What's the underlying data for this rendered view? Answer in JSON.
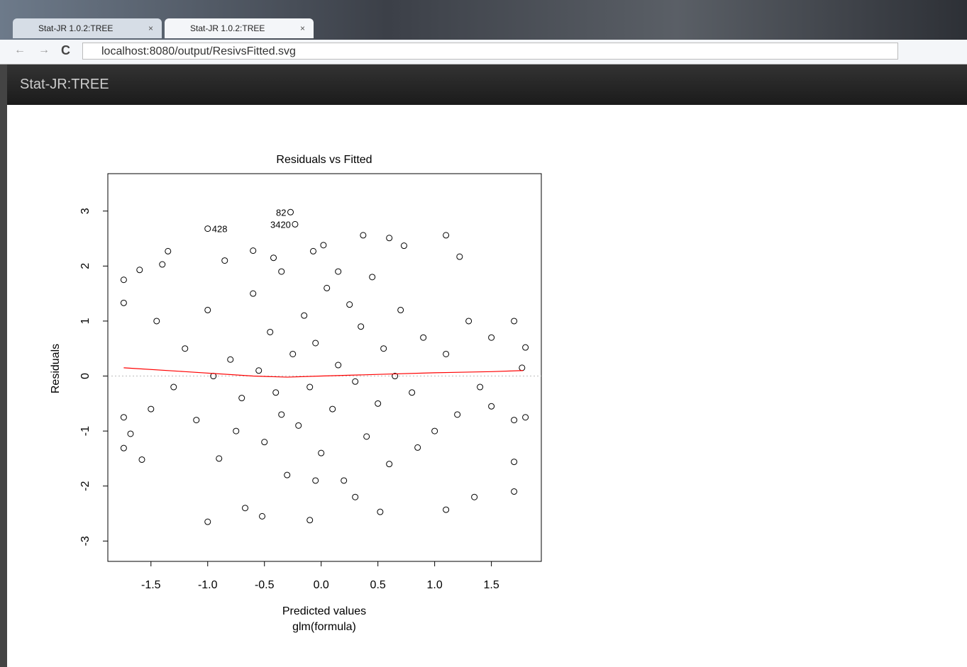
{
  "browser": {
    "tabs": [
      "Stat-JR 1.0.2:TREE",
      "Stat-JR 1.0.2:TREE"
    ],
    "url": "localhost:8080/output/ResivsFitted.svg"
  },
  "app": {
    "title": "Stat-JR:TREE"
  },
  "chart_data": {
    "type": "scatter",
    "title": "Residuals vs Fitted",
    "x_label": "Predicted values",
    "subtitle": "glm(formula)",
    "y_label": "Residuals",
    "xlim": [
      -1.88,
      1.94
    ],
    "ylim": [
      -3.37,
      3.68
    ],
    "xticks": [
      -1.5,
      {
        "value": -1.0,
        "label": "-1.0"
      },
      -0.5,
      {
        "value": 0.0,
        "label": "0.0"
      },
      0.5,
      {
        "value": 1.0,
        "label": "1.0"
      },
      1.5
    ],
    "yticks": [
      -3,
      -2,
      -1,
      0,
      1,
      2,
      3
    ],
    "reference_line": 0,
    "x": [
      -1.74,
      -1.74,
      -1.74,
      -1.74,
      -1.68,
      -1.6,
      -1.58,
      -1.4,
      -1.35,
      -1.0,
      -0.85,
      -0.67,
      -0.6,
      -0.52,
      -0.42,
      -0.1,
      -0.07,
      0.02,
      0.37,
      0.52,
      0.6,
      0.73,
      1.1,
      1.1,
      1.22,
      1.35,
      1.7,
      1.7,
      1.7,
      1.8,
      1.8,
      1.77,
      1.7,
      1.5,
      1.5,
      -1.2,
      -1.1,
      -1.0,
      -0.9,
      -0.8,
      -0.7,
      -0.6,
      -0.5,
      -0.45,
      -0.4,
      -0.35,
      -0.3,
      -0.25,
      -0.2,
      -0.15,
      -0.1,
      -0.05,
      0.0,
      0.05,
      0.1,
      0.15,
      0.2,
      0.25,
      0.3,
      0.35,
      0.4,
      0.45,
      0.5,
      0.55,
      0.6,
      0.7,
      0.8,
      0.9,
      1.0,
      1.1,
      1.2,
      1.3,
      1.4,
      -1.3,
      -1.45,
      -1.5,
      -0.95,
      -0.75,
      -0.55,
      -0.35,
      -0.05,
      0.15,
      0.3,
      0.65,
      0.85
    ],
    "y": [
      1.75,
      1.33,
      -0.75,
      -1.31,
      -1.05,
      1.93,
      -1.52,
      2.03,
      2.27,
      -2.65,
      2.1,
      -2.4,
      2.28,
      -2.55,
      2.15,
      -2.62,
      2.27,
      2.38,
      2.56,
      -2.47,
      2.51,
      2.37,
      2.56,
      -2.43,
      2.17,
      -2.2,
      1.0,
      -1.56,
      -2.1,
      0.52,
      -0.75,
      0.15,
      -0.8,
      0.7,
      -0.55,
      0.5,
      -0.8,
      1.2,
      -1.5,
      0.3,
      -0.4,
      1.5,
      -1.2,
      0.8,
      -0.3,
      1.9,
      -1.8,
      0.4,
      -0.9,
      1.1,
      -0.2,
      0.6,
      -1.4,
      1.6,
      -0.6,
      0.2,
      -1.9,
      1.3,
      -0.1,
      0.9,
      -1.1,
      1.8,
      -0.5,
      0.5,
      -1.6,
      1.2,
      -0.3,
      0.7,
      -1.0,
      0.4,
      -0.7,
      1.0,
      -0.2,
      -0.2,
      1.0,
      -0.6,
      0.0,
      -1.0,
      0.1,
      -0.7,
      -1.9,
      1.9,
      -2.2,
      0.0,
      -1.3
    ],
    "point_color": "#000000",
    "annotations": [
      {
        "x": -1.0,
        "y": 2.68,
        "label": "428",
        "side": "right"
      },
      {
        "x": -0.27,
        "y": 2.98,
        "label": "82",
        "side": "left"
      },
      {
        "x": -0.23,
        "y": 2.76,
        "label": "3420",
        "side": "left"
      }
    ],
    "smooth": {
      "x": [
        -1.74,
        -1.2,
        -0.6,
        -0.3,
        0,
        0.5,
        1.0,
        1.5,
        1.78
      ],
      "y": [
        0.15,
        0.08,
        0.0,
        -0.02,
        0.0,
        0.03,
        0.06,
        0.08,
        0.1
      ],
      "color": "#ff0000"
    }
  }
}
